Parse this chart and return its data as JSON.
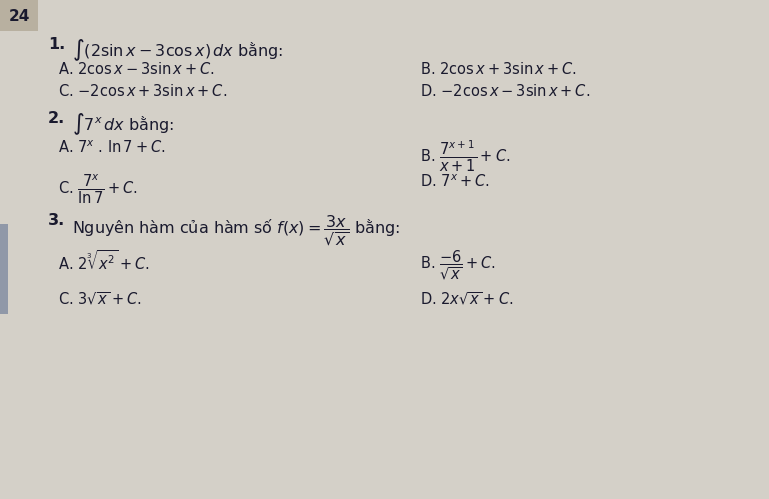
{
  "page_num": "24",
  "bg_color": "#c8c4bc",
  "main_bg": "#d4d0c8",
  "text_color": "#1a1a2e",
  "fig_width": 7.69,
  "fig_height": 4.99,
  "dpi": 100,
  "q1_num": "1.",
  "q1_q": "$\\int(2\\sin x - 3\\cos x)\\,dx$ bằng:",
  "q1_A": "A. $2\\cos x - 3\\sin x + C.$",
  "q1_B": "B. $2\\cos x + 3\\sin x + C.$",
  "q1_C": "C. $-2\\cos x + 3\\sin x + C.$",
  "q1_D": "D. $-2\\cos x - 3\\sin x + C.$",
  "q2_num": "2.",
  "q2_q": "$\\int 7^x\\,dx$ bằng:",
  "q2_A": "A. $7^x$ . $\\ln 7 + C.$",
  "q2_B": "B. $\\dfrac{7^{x+1}}{x+1} + C.$",
  "q2_C": "C. $\\dfrac{7^x}{\\ln 7} + C.$",
  "q2_D": "D. $7^x + C.$",
  "q3_num": "3.",
  "q3_q": "Nguyên hàm của hàm số $f(x) = \\dfrac{3x}{\\sqrt{x}}$ bằng:",
  "q3_A": "A. $2\\sqrt[3]{x^2} + C.$",
  "q3_B": "B. $\\dfrac{-6}{\\sqrt{x}} + C.$",
  "q3_C": "C. $3\\sqrt{x} + C.$",
  "q3_D": "D. $2x\\sqrt{x} + C.$"
}
